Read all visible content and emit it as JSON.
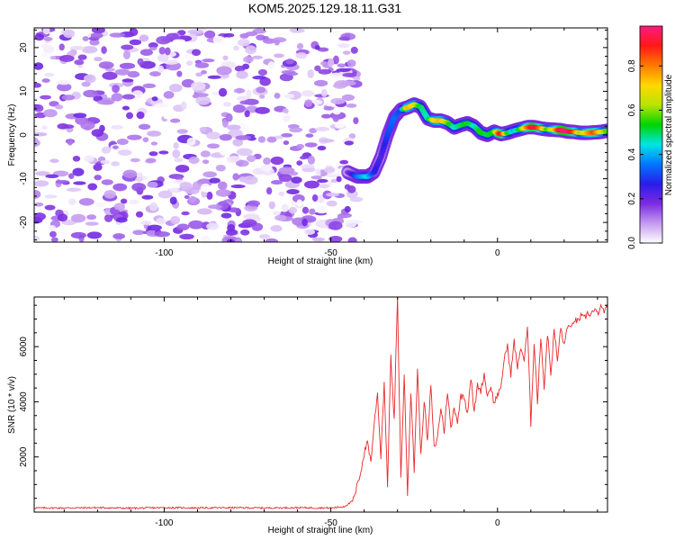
{
  "title": "KOM5.2025.129.18.11.G31",
  "chart_data": [
    {
      "type": "heatmap",
      "xlabel": "Height of straight line (km)",
      "ylabel": "Frequency (Hz)",
      "xlim": [
        -139,
        33
      ],
      "ylim": [
        -24.5,
        24.5
      ],
      "xticks": [
        -100,
        -50,
        0
      ],
      "yticks": [
        -20,
        -10,
        0,
        10,
        20
      ],
      "colorbar": {
        "label": "Normalized spectral amplitude",
        "range": [
          0,
          0.98
        ],
        "ticks": [
          "0.0",
          "0.2",
          "0.4",
          "0.6",
          "0.8"
        ],
        "tick_values": [
          0,
          0.2,
          0.4,
          0.6,
          0.8
        ],
        "colors": [
          "#ffffff",
          "#c49af0",
          "#7b2be0",
          "#2a1de8",
          "#0077ff",
          "#00e5e5",
          "#00d400",
          "#b8e400",
          "#ffd800",
          "#ff7a00",
          "#ff1818",
          "#ff1a80"
        ]
      },
      "noise_region": {
        "x_range": [
          -139,
          -42
        ],
        "amplitude_range": [
          0.0,
          0.2
        ]
      },
      "ridge": {
        "x": [
          -45,
          -42,
          -39,
          -37,
          -35,
          -33,
          -31,
          -29,
          -27,
          -25,
          -23,
          -21,
          -19,
          -17,
          -15,
          -13,
          -11,
          -9,
          -7,
          -5,
          -3,
          -1,
          1,
          3,
          5,
          7,
          9,
          11,
          13,
          15,
          17,
          19,
          21,
          23,
          25,
          27,
          29,
          31,
          33
        ],
        "frequency": [
          -8.5,
          -9.5,
          -9.5,
          -8.5,
          -5,
          0,
          4,
          5.8,
          6.3,
          7,
          6.4,
          3.8,
          3.3,
          3.3,
          2.8,
          1.7,
          2.3,
          2.7,
          2.0,
          0.5,
          0.0,
          0.8,
          0.2,
          0.5,
          1.0,
          1.4,
          1.8,
          1.8,
          1.5,
          1.3,
          1.2,
          1.1,
          0.8,
          0.7,
          0.5,
          0.5,
          0.6,
          0.7,
          1.0
        ],
        "amplitude": [
          0.15,
          0.35,
          0.45,
          0.28,
          0.22,
          0.3,
          0.35,
          0.3,
          0.75,
          0.7,
          0.5,
          0.45,
          0.7,
          0.75,
          0.6,
          0.45,
          0.5,
          0.55,
          0.45,
          0.55,
          0.5,
          0.55,
          0.95,
          0.55,
          0.4,
          0.55,
          0.8,
          0.95,
          0.8,
          0.55,
          0.7,
          0.95,
          0.98,
          0.85,
          0.6,
          0.75,
          0.85,
          0.7,
          0.55
        ]
      }
    },
    {
      "type": "line",
      "xlabel": "Height of straight line (km)",
      "ylabel": "SNR (10 * v/v)",
      "xlim": [
        -139,
        33
      ],
      "ylim": [
        0,
        7800
      ],
      "xticks": [
        -100,
        -50,
        0
      ],
      "yticks": [
        2000,
        4000,
        6000
      ],
      "color": "#e8282a",
      "series": [
        {
          "x": [
            -139,
            -130,
            -120,
            -110,
            -100,
            -90,
            -80,
            -70,
            -60,
            -50,
            -46,
            -44,
            -43,
            -42,
            -41,
            -40,
            -39,
            -38,
            -37,
            -36,
            -35,
            -34,
            -33,
            -32,
            -31,
            -30,
            -29,
            -28,
            -27,
            -26,
            -25,
            -24,
            -23,
            -22,
            -21,
            -20,
            -19,
            -18,
            -17,
            -16,
            -15,
            -14,
            -13,
            -12,
            -11,
            -10,
            -9,
            -8,
            -7,
            -6,
            -5,
            -4,
            -3,
            -2,
            -1,
            0,
            1,
            2,
            3,
            4,
            5,
            6,
            7,
            8,
            9,
            10,
            11,
            12,
            13,
            14,
            15,
            16,
            17,
            18,
            19,
            20,
            21,
            22,
            23,
            24,
            25,
            26,
            27,
            28,
            29,
            30,
            31,
            32,
            33
          ],
          "values": [
            150,
            150,
            160,
            140,
            160,
            150,
            160,
            150,
            160,
            150,
            200,
            350,
            500,
            1000,
            1500,
            2100,
            2600,
            1800,
            3200,
            4300,
            2000,
            4700,
            1000,
            5600,
            3300,
            7800,
            1200,
            5000,
            700,
            4400,
            1500,
            5200,
            2000,
            4100,
            2500,
            4600,
            2300,
            2700,
            3800,
            2900,
            4400,
            3000,
            3800,
            3300,
            4200,
            4200,
            3600,
            4900,
            3600,
            4600,
            4400,
            5000,
            4200,
            4600,
            3900,
            4300,
            4400,
            5600,
            6000,
            5000,
            6200,
            5200,
            6000,
            5500,
            6700,
            3200,
            6200,
            4000,
            6400,
            4500,
            6500,
            5000,
            6600,
            5500,
            6700,
            6000,
            6800,
            6600,
            7000,
            6900,
            7100,
            7000,
            7200,
            7200,
            7300,
            7200,
            7400,
            7300,
            7400
          ]
        }
      ]
    }
  ]
}
